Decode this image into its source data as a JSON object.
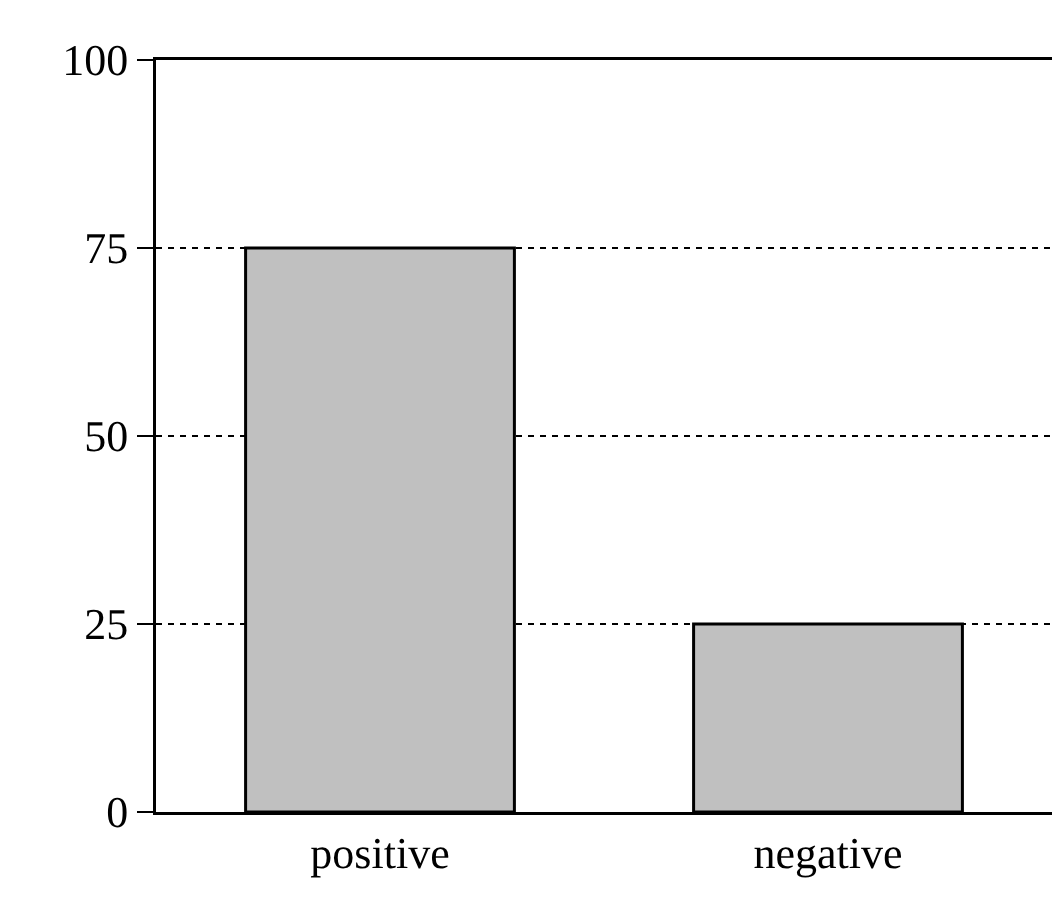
{
  "chart_data": {
    "type": "bar",
    "categories": [
      "positive",
      "negative"
    ],
    "values": [
      75,
      25
    ],
    "color": "#c0c0c0",
    "ylim": [
      0,
      100
    ],
    "yticks": [
      0,
      25,
      50,
      75,
      100
    ],
    "grid": "y"
  }
}
